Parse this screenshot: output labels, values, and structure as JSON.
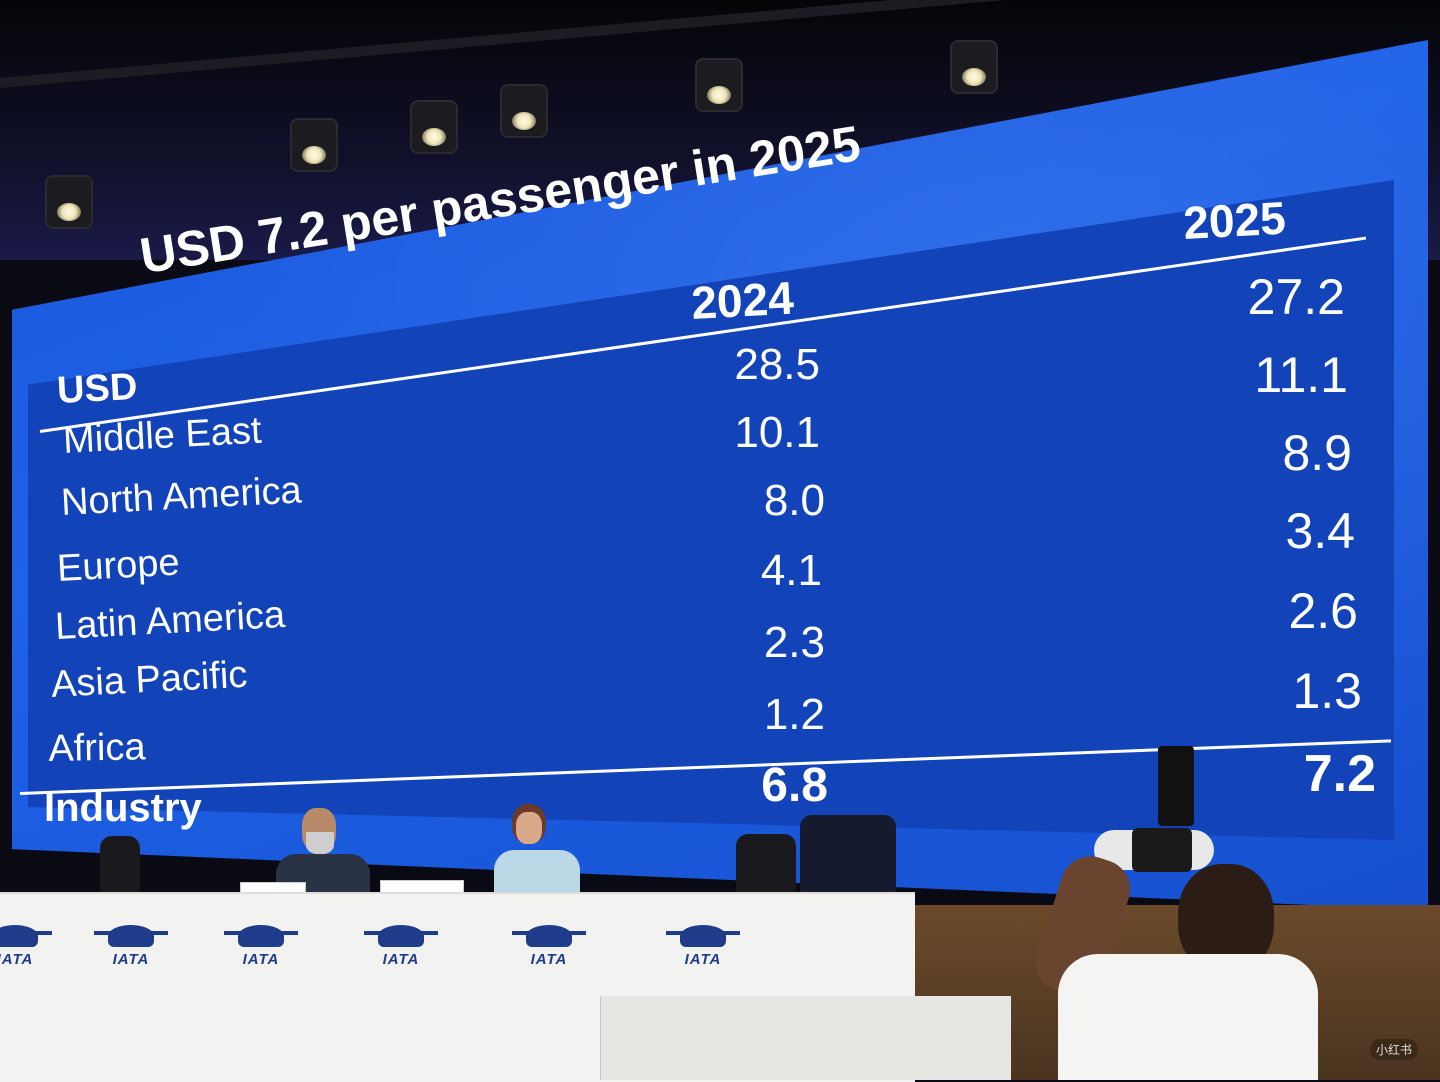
{
  "slide": {
    "title": "USD 7.2 per passenger in 2025",
    "header": {
      "label": "USD",
      "col_2024": "2024",
      "col_2025": "2025"
    },
    "rows": [
      {
        "region": "Middle East",
        "v2024": "28.5",
        "v2025": "27.2"
      },
      {
        "region": "North America",
        "v2024": "10.1",
        "v2025": "11.1"
      },
      {
        "region": "Europe",
        "v2024": "8.0",
        "v2025": "8.9"
      },
      {
        "region": "Latin America",
        "v2024": "4.1",
        "v2025": "3.4"
      },
      {
        "region": "Asia Pacific",
        "v2024": "2.3",
        "v2025": "2.6"
      },
      {
        "region": "Africa",
        "v2024": "1.2",
        "v2025": "1.3"
      }
    ],
    "total": {
      "region": "Industry",
      "v2024": "6.8",
      "v2025": "7.2"
    }
  },
  "stage": {
    "logo_text": "IATA",
    "watermark": "小红书"
  },
  "colors": {
    "screen_blue": "#1e62e8",
    "text_white": "#ffffff",
    "iata_blue": "#1e3c8a"
  }
}
